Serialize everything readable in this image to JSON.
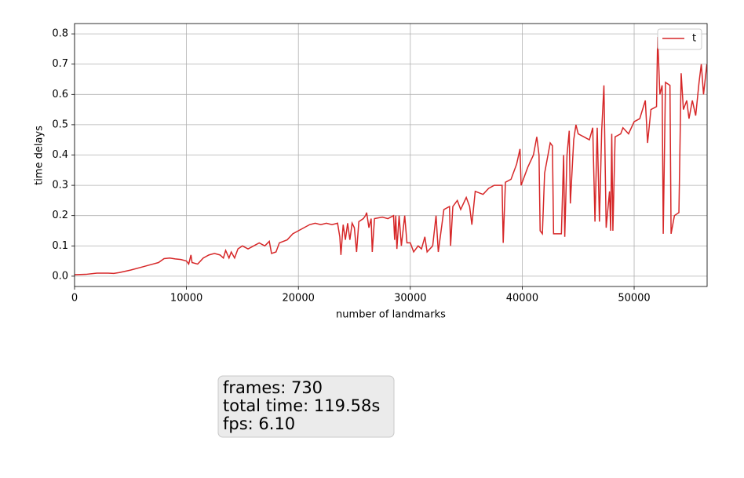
{
  "chart_data": {
    "type": "line",
    "x_label": "number of landmarks",
    "y_label": "time delays",
    "x": [
      0,
      1000,
      2000,
      3000,
      3500,
      4000,
      5000,
      6000,
      7000,
      7500,
      8000,
      8500,
      9000,
      9500,
      10000,
      10200,
      10400,
      10500,
      11000,
      11500,
      12000,
      12500,
      13000,
      13300,
      13500,
      13800,
      14000,
      14300,
      14600,
      15000,
      15500,
      16000,
      16500,
      17000,
      17400,
      17600,
      18000,
      18300,
      19000,
      19500,
      20000,
      20500,
      21000,
      21500,
      22000,
      22500,
      23000,
      23500,
      23700,
      23800,
      24000,
      24200,
      24400,
      24600,
      24800,
      25000,
      25200,
      25400,
      25800,
      26000,
      26100,
      26300,
      26500,
      26600,
      26800,
      27500,
      28000,
      28500,
      28600,
      28700,
      28800,
      29000,
      29200,
      29500,
      29700,
      30000,
      30300,
      30700,
      31000,
      31300,
      31500,
      32000,
      32300,
      32500,
      33000,
      33500,
      33600,
      33800,
      34200,
      34500,
      35000,
      35300,
      35500,
      35800,
      36500,
      37000,
      37500,
      38000,
      38200,
      38300,
      38500,
      39000,
      39500,
      39800,
      39900,
      40500,
      41000,
      41300,
      41500,
      41600,
      41800,
      42000,
      42500,
      42700,
      42800,
      43500,
      43700,
      43800,
      44000,
      44200,
      44300,
      44600,
      44800,
      45000,
      45500,
      46000,
      46300,
      46500,
      46700,
      46900,
      47100,
      47300,
      47500,
      47800,
      47900,
      48000,
      48100,
      48300,
      48800,
      49000,
      49500,
      50000,
      50500,
      51000,
      51200,
      51500,
      52000,
      52100,
      52300,
      52500,
      52600,
      52800,
      53200,
      53300,
      53600,
      54000,
      54200,
      54400,
      54700,
      54900,
      55200,
      55500,
      55800,
      56000,
      56200,
      56500
    ],
    "series": [
      {
        "name": "t",
        "color": "#d62728",
        "values": [
          0.005,
          0.006,
          0.01,
          0.01,
          0.009,
          0.012,
          0.02,
          0.03,
          0.04,
          0.045,
          0.058,
          0.06,
          0.057,
          0.055,
          0.05,
          0.04,
          0.07,
          0.045,
          0.04,
          0.06,
          0.07,
          0.075,
          0.07,
          0.06,
          0.085,
          0.06,
          0.08,
          0.06,
          0.09,
          0.1,
          0.09,
          0.1,
          0.11,
          0.1,
          0.115,
          0.075,
          0.08,
          0.11,
          0.12,
          0.14,
          0.15,
          0.16,
          0.17,
          0.175,
          0.17,
          0.175,
          0.17,
          0.175,
          0.13,
          0.07,
          0.17,
          0.12,
          0.175,
          0.12,
          0.175,
          0.16,
          0.08,
          0.18,
          0.19,
          0.2,
          0.21,
          0.16,
          0.19,
          0.08,
          0.19,
          0.195,
          0.19,
          0.2,
          0.12,
          0.2,
          0.09,
          0.2,
          0.1,
          0.2,
          0.11,
          0.11,
          0.08,
          0.1,
          0.09,
          0.13,
          0.08,
          0.1,
          0.2,
          0.08,
          0.22,
          0.23,
          0.1,
          0.23,
          0.25,
          0.22,
          0.26,
          0.23,
          0.17,
          0.28,
          0.27,
          0.29,
          0.3,
          0.3,
          0.3,
          0.11,
          0.31,
          0.32,
          0.37,
          0.42,
          0.3,
          0.36,
          0.4,
          0.46,
          0.4,
          0.15,
          0.14,
          0.34,
          0.44,
          0.43,
          0.14,
          0.14,
          0.4,
          0.13,
          0.4,
          0.48,
          0.24,
          0.45,
          0.5,
          0.47,
          0.46,
          0.45,
          0.49,
          0.18,
          0.49,
          0.18,
          0.48,
          0.63,
          0.16,
          0.28,
          0.15,
          0.47,
          0.15,
          0.46,
          0.47,
          0.49,
          0.47,
          0.51,
          0.52,
          0.58,
          0.44,
          0.55,
          0.56,
          0.79,
          0.6,
          0.63,
          0.14,
          0.64,
          0.63,
          0.14,
          0.2,
          0.21,
          0.67,
          0.55,
          0.58,
          0.52,
          0.58,
          0.53,
          0.64,
          0.7,
          0.6,
          0.7
        ]
      }
    ],
    "xlim": [
      0,
      56520
    ],
    "xticks": [
      0,
      10000,
      20000,
      30000,
      40000,
      50000
    ],
    "ylim": [
      -0.034,
      0.834
    ],
    "yticks": [
      {
        "value": 0,
        "label": "0.0"
      },
      0.1,
      0.2,
      0.3,
      0.4,
      0.5,
      0.6,
      0.7,
      0.8
    ],
    "grid": true,
    "legend": "upper right",
    "annotations": [
      "frames: 730",
      "total time: 119.58s",
      "fps: 6.10"
    ]
  }
}
